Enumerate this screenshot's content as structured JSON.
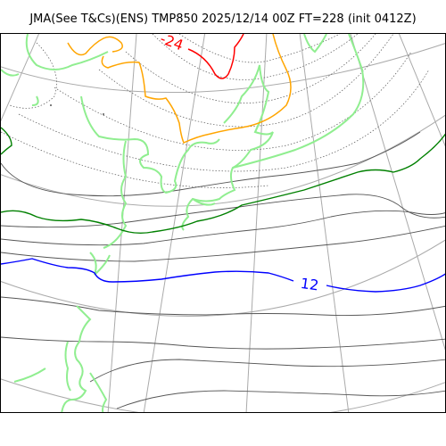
{
  "title": "JMA(See T&Cs)(ENS) TMP850 2025/12/14 00Z FT=228 (init 0412Z)",
  "contour_labels": {
    "red": "-24",
    "blue": "12"
  },
  "colors": {
    "graticule": "#aaaaaa",
    "coastline": "#90ee90",
    "isotherm_zero": "#008000",
    "isotherm_warm": "#0000ff",
    "isotherm_cold": "#ff0000",
    "isotherm_mid_cold": "#ffa500",
    "isotherm_other": "#555555"
  },
  "legend": {
    "field": "TMP850",
    "model": "JMA ENS"
  }
}
